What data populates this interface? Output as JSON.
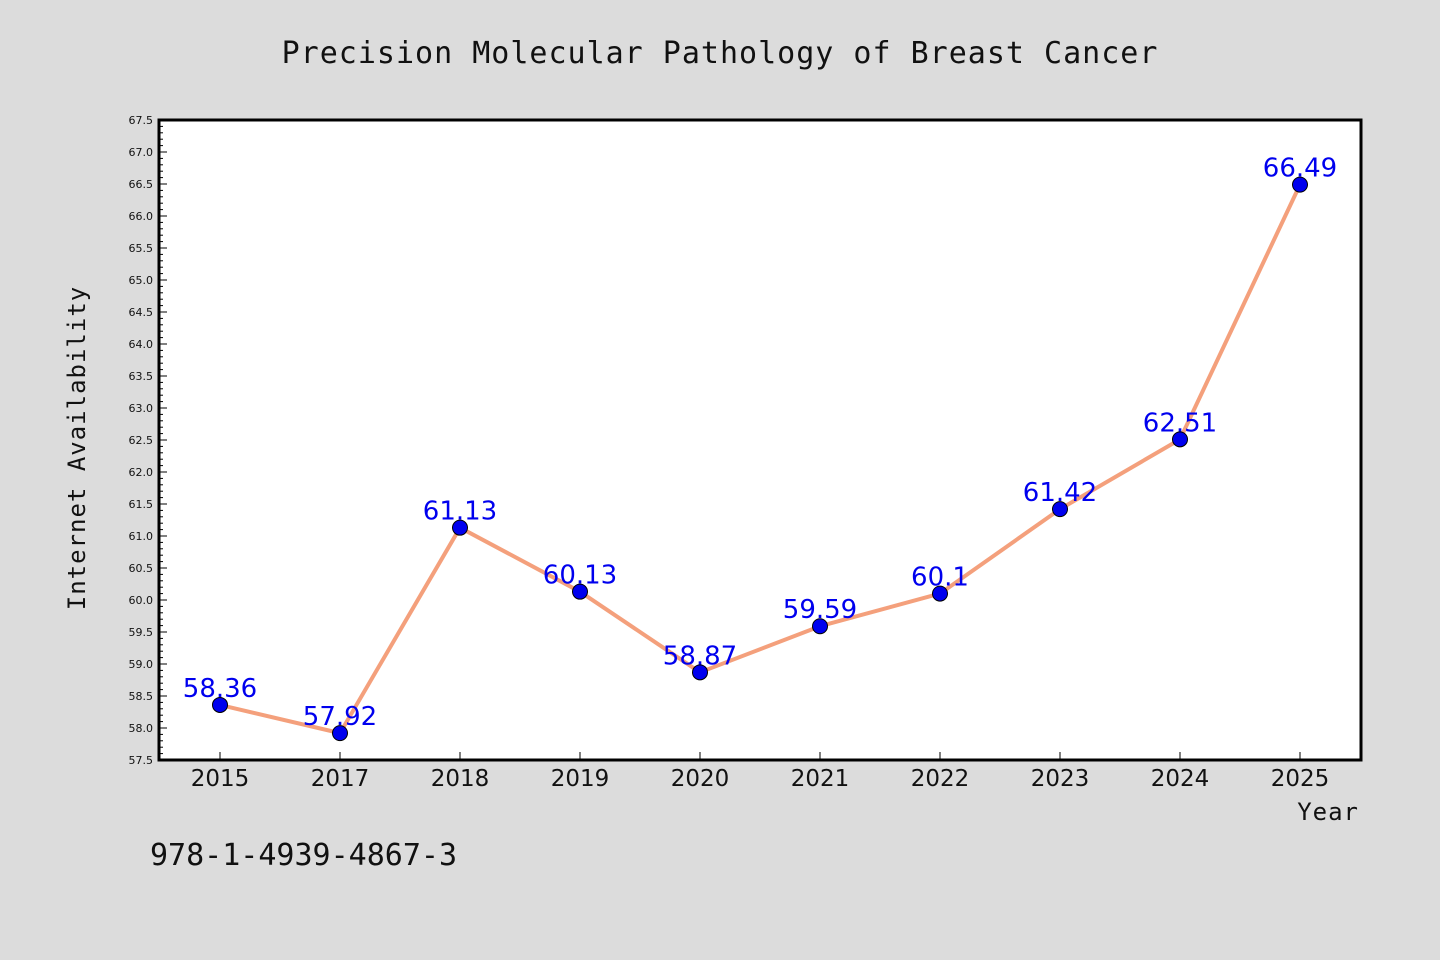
{
  "chart_data": {
    "type": "line",
    "title": "Precision Molecular Pathology of Breast Cancer",
    "xlabel": "Year",
    "ylabel": "Internet Availability",
    "categories": [
      "2015",
      "2017",
      "2018",
      "2019",
      "2020",
      "2021",
      "2022",
      "2023",
      "2024",
      "2025"
    ],
    "series": [
      {
        "values": [
          58.36,
          57.92,
          61.13,
          60.13,
          58.87,
          59.59,
          60.1,
          61.42,
          62.51,
          66.49
        ]
      }
    ],
    "data_labels": [
      "58.36",
      "57.92",
      "61.13",
      "60.13",
      "58.87",
      "59.59",
      "60.1",
      "61.42",
      "62.51",
      "66.49"
    ],
    "ylim": [
      57.5,
      67.5
    ],
    "yticks": [
      "57.5",
      "58.0",
      "58.5",
      "59.0",
      "59.5",
      "60.0",
      "60.5",
      "61.0",
      "61.5",
      "62.0",
      "62.5",
      "63.0",
      "63.5",
      "64.0",
      "64.5",
      "65.0",
      "65.5",
      "66.0",
      "66.5",
      "67.0",
      "67.5"
    ],
    "grid": false,
    "colors": {
      "line": "#f4a07c",
      "marker": "#0000ee",
      "label": "#0000ee",
      "background": "#dcdcdc",
      "plot_background": "#ffffff"
    }
  },
  "footer_text": "978-1-4939-4867-3"
}
